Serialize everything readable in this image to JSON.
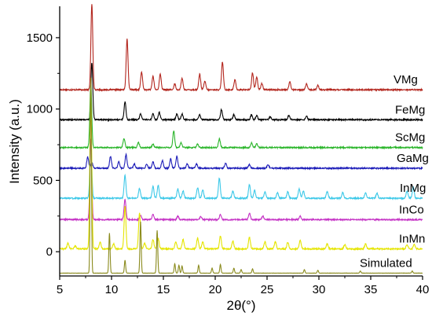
{
  "chart_data": {
    "type": "line",
    "xlabel": "2θ(°)",
    "ylabel": "Intensity (a.u.)",
    "xlim": [
      5,
      40
    ],
    "ylim": [
      -170,
      1720
    ],
    "x_ticks": [
      5,
      10,
      15,
      20,
      25,
      30,
      35,
      40
    ],
    "y_ticks": [
      0,
      500,
      1000,
      1500
    ],
    "grid": false,
    "legend": "labels placed at right end of each trace",
    "series": [
      {
        "name": "VMg",
        "color": "#b3261e",
        "baseline": 1135,
        "peaks": [
          [
            8.1,
            600
          ],
          [
            11.5,
            355
          ],
          [
            12.9,
            125
          ],
          [
            14.0,
            95
          ],
          [
            14.7,
            110
          ],
          [
            16.1,
            40
          ],
          [
            16.8,
            80
          ],
          [
            18.5,
            110
          ],
          [
            19.0,
            60
          ],
          [
            20.7,
            195
          ],
          [
            21.9,
            70
          ],
          [
            23.6,
            120
          ],
          [
            24.0,
            90
          ],
          [
            24.5,
            45
          ],
          [
            27.2,
            55
          ],
          [
            28.8,
            40
          ],
          [
            29.9,
            30
          ]
        ]
      },
      {
        "name": "FeMg",
        "color": "#000000",
        "baseline": 925,
        "peaks": [
          [
            8.1,
            400
          ],
          [
            11.3,
            125
          ],
          [
            12.8,
            40
          ],
          [
            14.0,
            40
          ],
          [
            14.6,
            50
          ],
          [
            16.3,
            40
          ],
          [
            16.8,
            40
          ],
          [
            18.5,
            35
          ],
          [
            20.6,
            70
          ],
          [
            21.8,
            35
          ],
          [
            23.5,
            35
          ],
          [
            24.0,
            30
          ],
          [
            25.3,
            20
          ],
          [
            27.1,
            30
          ],
          [
            28.8,
            25
          ]
        ]
      },
      {
        "name": "ScMg",
        "color": "#2ab52a",
        "baseline": 730,
        "peaks": [
          [
            8.0,
            445
          ],
          [
            11.2,
            65
          ],
          [
            12.6,
            35
          ],
          [
            14.0,
            25
          ],
          [
            16.0,
            115
          ],
          [
            16.7,
            35
          ],
          [
            18.3,
            25
          ],
          [
            20.4,
            60
          ],
          [
            23.5,
            35
          ],
          [
            24.0,
            25
          ]
        ]
      },
      {
        "name": "GaMg",
        "color": "#1c1cb8",
        "baseline": 585,
        "peaks": [
          [
            7.7,
            80
          ],
          [
            8.1,
            40
          ],
          [
            9.9,
            85
          ],
          [
            10.7,
            45
          ],
          [
            11.4,
            95
          ],
          [
            12.2,
            30
          ],
          [
            13.4,
            30
          ],
          [
            14.0,
            45
          ],
          [
            14.9,
            55
          ],
          [
            15.7,
            65
          ],
          [
            16.3,
            85
          ],
          [
            17.3,
            30
          ],
          [
            18.2,
            30
          ],
          [
            21.0,
            35
          ],
          [
            23.3,
            25
          ],
          [
            25.1,
            25
          ]
        ]
      },
      {
        "name": "InMg",
        "color": "#3cc8e8",
        "baseline": 375,
        "peaks": [
          [
            8.0,
            420
          ],
          [
            11.3,
            160
          ],
          [
            12.7,
            70
          ],
          [
            14.0,
            85
          ],
          [
            14.5,
            90
          ],
          [
            16.4,
            65
          ],
          [
            16.9,
            50
          ],
          [
            18.3,
            75
          ],
          [
            18.8,
            60
          ],
          [
            20.4,
            140
          ],
          [
            21.7,
            50
          ],
          [
            23.3,
            95
          ],
          [
            23.8,
            55
          ],
          [
            24.8,
            45
          ],
          [
            26.0,
            40
          ],
          [
            27.0,
            45
          ],
          [
            28.1,
            65
          ],
          [
            28.5,
            50
          ],
          [
            30.8,
            45
          ],
          [
            32.3,
            40
          ],
          [
            34.5,
            40
          ],
          [
            35.6,
            35
          ],
          [
            38.5,
            50
          ],
          [
            39.1,
            80
          ]
        ]
      },
      {
        "name": "InCo",
        "color": "#c533c5",
        "baseline": 225,
        "peaks": [
          [
            8.0,
            560
          ],
          [
            11.3,
            145
          ],
          [
            12.8,
            30
          ],
          [
            14.0,
            35
          ],
          [
            16.4,
            25
          ],
          [
            18.6,
            20
          ],
          [
            20.5,
            35
          ],
          [
            23.3,
            45
          ],
          [
            24.6,
            25
          ],
          [
            28.2,
            25
          ]
        ]
      },
      {
        "name": "InMn",
        "color": "#e5e500",
        "baseline": 20,
        "peaks": [
          [
            5.8,
            40
          ],
          [
            6.5,
            20
          ],
          [
            8.0,
            1090
          ],
          [
            8.9,
            50
          ],
          [
            10.2,
            35
          ],
          [
            11.3,
            300
          ],
          [
            12.7,
            255
          ],
          [
            13.2,
            40
          ],
          [
            14.0,
            65
          ],
          [
            14.5,
            75
          ],
          [
            16.2,
            50
          ],
          [
            16.9,
            65
          ],
          [
            18.3,
            75
          ],
          [
            18.8,
            50
          ],
          [
            20.5,
            90
          ],
          [
            21.7,
            55
          ],
          [
            23.3,
            80
          ],
          [
            24.8,
            50
          ],
          [
            25.8,
            50
          ],
          [
            27.0,
            45
          ],
          [
            28.2,
            60
          ],
          [
            30.8,
            35
          ],
          [
            32.5,
            30
          ],
          [
            34.5,
            35
          ],
          [
            38.5,
            30
          ],
          [
            39.2,
            30
          ]
        ]
      },
      {
        "name": "Simulated",
        "color": "#8b8b1e",
        "baseline": -150,
        "peaks": [
          [
            8.0,
            1370
          ],
          [
            9.8,
            280
          ],
          [
            11.3,
            90
          ],
          [
            12.8,
            360
          ],
          [
            14.4,
            300
          ],
          [
            16.1,
            65
          ],
          [
            16.5,
            55
          ],
          [
            16.8,
            50
          ],
          [
            18.4,
            55
          ],
          [
            19.7,
            35
          ],
          [
            20.5,
            60
          ],
          [
            21.8,
            35
          ],
          [
            22.5,
            25
          ],
          [
            23.6,
            30
          ],
          [
            28.6,
            25
          ],
          [
            29.9,
            20
          ],
          [
            34.0,
            15
          ],
          [
            39.0,
            15
          ]
        ]
      }
    ]
  }
}
